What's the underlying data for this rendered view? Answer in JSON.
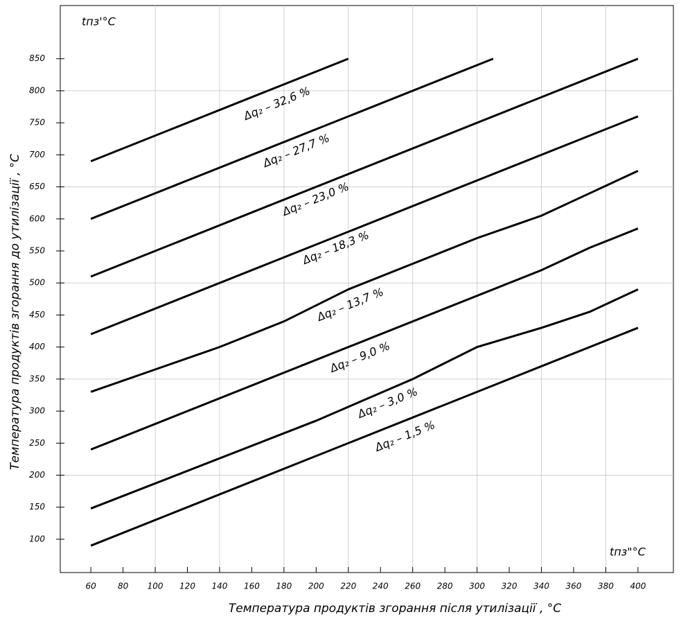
{
  "chart_data": {
    "type": "line",
    "y_title": "tпз'°C",
    "x_title": "tпз\"°C",
    "y_label": "Температура продуктів згорання до утилізації , °C",
    "x_label": "Температура продуктів згорання після утилізації , °C",
    "xlim": [
      41,
      422
    ],
    "ylim": [
      48,
      933
    ],
    "xticks": [
      60,
      80,
      100,
      120,
      140,
      160,
      180,
      200,
      220,
      240,
      260,
      280,
      300,
      320,
      340,
      360,
      380,
      400
    ],
    "yticks": [
      100,
      150,
      200,
      250,
      300,
      350,
      400,
      450,
      500,
      550,
      600,
      650,
      700,
      750,
      800,
      850
    ],
    "xgrid": [
      100,
      140,
      180,
      220,
      260,
      300,
      340,
      380
    ],
    "ygrid": [
      200,
      350,
      500,
      650,
      800
    ],
    "series": [
      {
        "name": "Δq₂ – 32,6 %",
        "color": "#000000",
        "x": [
          60,
          220
        ],
        "values": [
          690,
          850
        ]
      },
      {
        "name": "Δq₂ – 27,7 %",
        "color": "#000000",
        "x": [
          60,
          310
        ],
        "values": [
          600,
          850
        ]
      },
      {
        "name": "Δq₂ – 23,0 %",
        "color": "#000000",
        "x": [
          60,
          400
        ],
        "values": [
          510,
          850
        ]
      },
      {
        "name": "Δq₂ – 18,3 %",
        "color": "#000000",
        "x": [
          60,
          390,
          400
        ],
        "values": [
          420,
          750,
          760
        ]
      },
      {
        "name": "Δq₂ – 13,7 %",
        "color": "#000000",
        "x": [
          60,
          100,
          140,
          180,
          220,
          260,
          300,
          340,
          370,
          400
        ],
        "values": [
          330,
          365,
          400,
          440,
          490,
          530,
          570,
          605,
          640,
          675
        ]
      },
      {
        "name": "Δq₂ – 9,0 %",
        "color": "#000000",
        "x": [
          60,
          220,
          340,
          370,
          400
        ],
        "values": [
          240,
          400,
          520,
          555,
          585
        ]
      },
      {
        "name": "Δq₂ – 3,0 %",
        "color": "#000000",
        "x": [
          60,
          200,
          260,
          300,
          340,
          370,
          400
        ],
        "values": [
          148,
          285,
          350,
          400,
          430,
          455,
          490
        ]
      },
      {
        "name": "Δq₂ – 1,5 %",
        "color": "#000000",
        "x": [
          60,
          400
        ],
        "values": [
          90,
          430
        ]
      }
    ]
  }
}
